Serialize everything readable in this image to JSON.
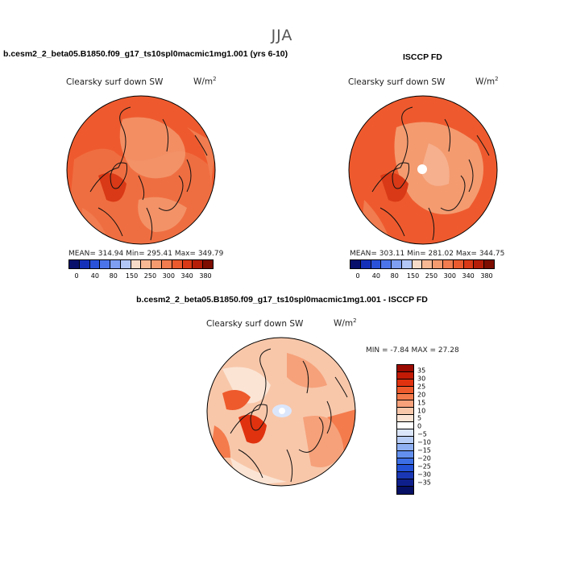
{
  "season": "JJA",
  "panel1": {
    "title": "b.cesm2_2_beta05.B1850.f09_g17_ts10spl0macmic1mg1.001 (yrs 6-10)",
    "field": "Clearsky surf down SW",
    "units_base": "W/m",
    "units_exp": "2",
    "stats": "MEAN= 314.94   Min= 295.41   Max= 349.79"
  },
  "panel2": {
    "title": "ISCCP FD",
    "field": "Clearsky surf down SW",
    "units_base": "W/m",
    "units_exp": "2",
    "stats": "MEAN= 303.11   Min= 281.02   Max= 344.75"
  },
  "panel3": {
    "title": "b.cesm2_2_beta05.B1850.f09_g17_ts10spl0macmic1mg1.001 - ISCCP FD",
    "field": "Clearsky surf down SW",
    "units_base": "W/m",
    "units_exp": "2",
    "minmax": "MIN =  -7.84  MAX =  27.28"
  },
  "abs_colorbar": {
    "colors": [
      "#08106b",
      "#1530b8",
      "#2a52d9",
      "#4c74ea",
      "#7e9ff2",
      "#b3c7f7",
      "#f6dcc8",
      "#f7b994",
      "#f49b70",
      "#f07c4f",
      "#ea5a2e",
      "#d93916",
      "#b51d08",
      "#7d0d00"
    ],
    "labels": [
      "0",
      "40",
      "80",
      "150",
      "250",
      "300",
      "340",
      "380"
    ]
  },
  "diff_colorbar": {
    "colors": [
      "#9b0a00",
      "#c21a05",
      "#e0320f",
      "#ee5a2c",
      "#f47b4c",
      "#f6a17a",
      "#f8c7aa",
      "#fbe4d4",
      "#ffffff",
      "#dbe6fb",
      "#b8cdf6",
      "#8fb0f2",
      "#6390ee",
      "#3c6fe6",
      "#2352d6",
      "#1a38b6",
      "#0e1f8c",
      "#061064"
    ],
    "labels": [
      "35",
      "30",
      "25",
      "20",
      "15",
      "10",
      "5",
      "0",
      "−5",
      "−10",
      "−15",
      "−20",
      "−25",
      "−30",
      "−35"
    ]
  }
}
